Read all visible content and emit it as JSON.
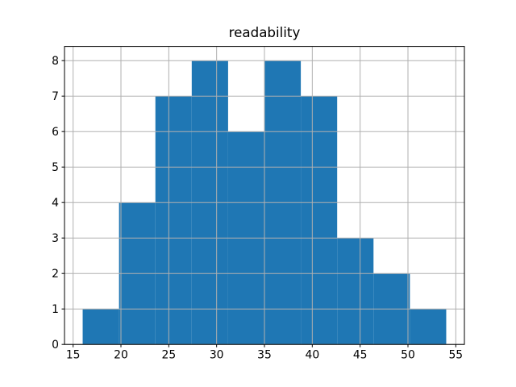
{
  "figure": {
    "background_color": "#ffffff"
  },
  "chart_data": {
    "type": "bar",
    "subtype": "histogram",
    "title": "readability",
    "xlabel": "",
    "ylabel": "",
    "bin_edges": [
      16,
      19.8,
      23.6,
      27.4,
      31.2,
      35,
      38.8,
      42.6,
      46.4,
      50.2,
      54
    ],
    "counts": [
      1,
      4,
      7,
      8,
      6,
      8,
      7,
      3,
      2,
      1
    ],
    "total_samples": 47,
    "xticks": [
      15,
      20,
      25,
      30,
      35,
      40,
      45,
      50,
      55
    ],
    "xtick_labels": [
      "15",
      "20",
      "25",
      "30",
      "35",
      "40",
      "45",
      "50",
      "55"
    ],
    "yticks": [
      0,
      1,
      2,
      3,
      4,
      5,
      6,
      7,
      8
    ],
    "ytick_labels": [
      "0",
      "1",
      "2",
      "3",
      "4",
      "5",
      "6",
      "7",
      "8"
    ],
    "xlim": [
      14.1,
      55.9
    ],
    "ylim": [
      0,
      8.4
    ],
    "grid": true,
    "grid_above_bars": true,
    "legend": false,
    "colors": {
      "bar": "#1f77b4",
      "grid": "#b0b0b0",
      "spine": "#000000",
      "text": "#000000",
      "background": "#ffffff"
    }
  }
}
